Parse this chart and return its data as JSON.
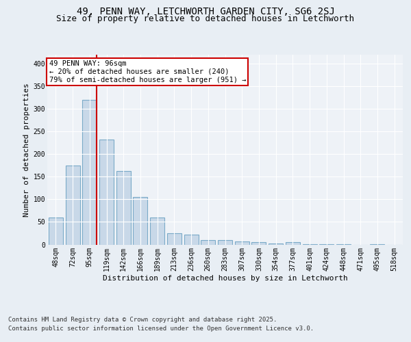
{
  "title": "49, PENN WAY, LETCHWORTH GARDEN CITY, SG6 2SJ",
  "subtitle": "Size of property relative to detached houses in Letchworth",
  "xlabel": "Distribution of detached houses by size in Letchworth",
  "ylabel": "Number of detached properties",
  "bar_labels": [
    "48sqm",
    "72sqm",
    "95sqm",
    "119sqm",
    "142sqm",
    "166sqm",
    "189sqm",
    "213sqm",
    "236sqm",
    "260sqm",
    "283sqm",
    "307sqm",
    "330sqm",
    "354sqm",
    "377sqm",
    "401sqm",
    "424sqm",
    "448sqm",
    "471sqm",
    "495sqm",
    "518sqm"
  ],
  "bar_values": [
    60,
    175,
    320,
    232,
    163,
    105,
    60,
    25,
    22,
    10,
    10,
    7,
    5,
    3,
    5,
    1,
    1,
    1,
    0,
    1,
    0
  ],
  "bar_color": "#c8d8e8",
  "bar_edge_color": "#7aaac8",
  "bar_edge_width": 0.8,
  "vline_color": "#cc0000",
  "annotation_title": "49 PENN WAY: 96sqm",
  "annotation_line1": "← 20% of detached houses are smaller (240)",
  "annotation_line2": "79% of semi-detached houses are larger (951) →",
  "annotation_box_color": "#ffffff",
  "annotation_box_edge": "#cc0000",
  "ylim": [
    0,
    420
  ],
  "yticks": [
    0,
    50,
    100,
    150,
    200,
    250,
    300,
    350,
    400
  ],
  "bg_color": "#e8eef4",
  "plot_bg_color": "#eef2f7",
  "grid_color": "#ffffff",
  "footer_line1": "Contains HM Land Registry data © Crown copyright and database right 2025.",
  "footer_line2": "Contains public sector information licensed under the Open Government Licence v3.0.",
  "title_fontsize": 10,
  "subtitle_fontsize": 9,
  "axis_label_fontsize": 8,
  "tick_fontsize": 7,
  "footer_fontsize": 6.5,
  "annotation_fontsize": 7.5
}
